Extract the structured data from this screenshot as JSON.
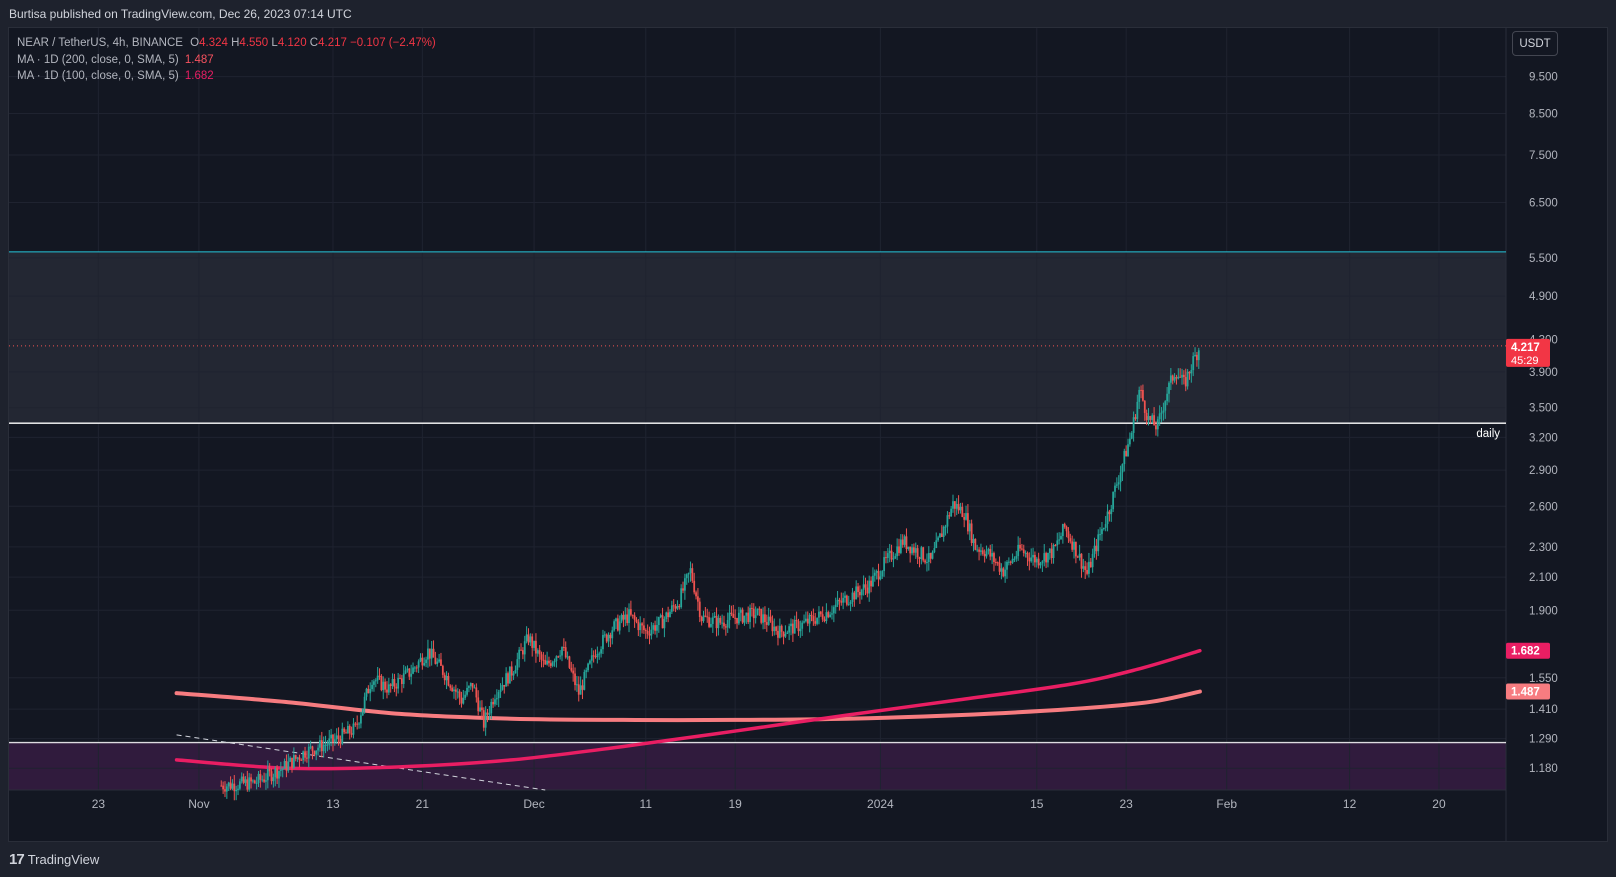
{
  "header": {
    "published": "Burtisa published on TradingView.com, Dec 26, 2023 07:14 UTC"
  },
  "legend": {
    "symbol": "NEAR / TetherUS, 4h, BINANCE",
    "o_label": "O",
    "o_value": "4.324",
    "h_label": "H",
    "h_value": "4.550",
    "l_label": "L",
    "l_value": "4.120",
    "c_label": "C",
    "c_value": "4.217",
    "change": "−0.107 (−2.47%)",
    "ma1_label": "MA · 1D (200, close, 0, SMA, 5)",
    "ma1_value": "1.487",
    "ma2_label": "MA · 1D (100, close, 0, SMA, 5)",
    "ma2_value": "1.682"
  },
  "currency_button": "USDT",
  "footer": {
    "brand": "TradingView",
    "logo": "17"
  },
  "colors": {
    "background": "#131722",
    "grid": "#1f2330",
    "up": "#26a69a",
    "down": "#ef5350",
    "ma200": "#f77c80",
    "ma100": "#e91e63",
    "resistance": "#26c6da",
    "support": "#ffffff",
    "zone": "#2a2e39",
    "purple_zone": "#311b3f"
  },
  "chart_data": {
    "type": "candlestick",
    "title": "NEAR / TetherUS, 4h, BINANCE",
    "y_scale": "log",
    "ylim": [
      1.105,
      11.0
    ],
    "y_ticks": [
      "9.500",
      "8.500",
      "7.500",
      "6.500",
      "5.500",
      "4.900",
      "4.300",
      "3.900",
      "3.500",
      "3.200",
      "2.900",
      "2.600",
      "2.300",
      "2.100",
      "1.900",
      "1.550",
      "1.410",
      "1.290",
      "1.180"
    ],
    "x_ticks": [
      "23",
      "Nov",
      "13",
      "21",
      "Dec",
      "11",
      "19",
      "2024",
      "15",
      "23",
      "Feb",
      "12",
      "20"
    ],
    "x_tick_dates": [
      "2023-10-23",
      "2023-11-01",
      "2023-11-13",
      "2023-11-21",
      "2023-12-01",
      "2023-12-11",
      "2023-12-19",
      "2024-01-01",
      "2024-01-15",
      "2024-01-23",
      "2024-02-01",
      "2024-02-12",
      "2024-02-20"
    ],
    "x_range": [
      "2023-10-15",
      "2024-02-26"
    ],
    "last_price": {
      "value": 4.217,
      "label": "4.217",
      "countdown": "45:29"
    },
    "levels": [
      {
        "name": "resistance",
        "value": 5.6
      },
      {
        "name": "daily",
        "value": 3.34,
        "label": "daily"
      },
      {
        "name": "support",
        "value": 1.275
      }
    ],
    "zones": [
      {
        "name": "supply-zone",
        "from": 3.34,
        "to": 5.6
      },
      {
        "name": "purple-zone",
        "from": 1.105,
        "to": 1.275
      }
    ],
    "anchors": [
      {
        "d": 19.0,
        "p": 1.12
      },
      {
        "d": 22.0,
        "p": 1.13
      },
      {
        "d": 24.5,
        "p": 1.18
      },
      {
        "d": 26.5,
        "p": 1.24
      },
      {
        "d": 29.0,
        "p": 1.28
      },
      {
        "d": 31.0,
        "p": 1.33
      },
      {
        "d": 32.5,
        "p": 1.55
      },
      {
        "d": 34.0,
        "p": 1.5
      },
      {
        "d": 36.0,
        "p": 1.58
      },
      {
        "d": 37.5,
        "p": 1.68
      },
      {
        "d": 39.0,
        "p": 1.57
      },
      {
        "d": 40.5,
        "p": 1.45
      },
      {
        "d": 41.5,
        "p": 1.52
      },
      {
        "d": 42.5,
        "p": 1.35
      },
      {
        "d": 43.5,
        "p": 1.48
      },
      {
        "d": 45.0,
        "p": 1.58
      },
      {
        "d": 46.5,
        "p": 1.75
      },
      {
        "d": 48.0,
        "p": 1.6
      },
      {
        "d": 49.5,
        "p": 1.7
      },
      {
        "d": 51.0,
        "p": 1.48
      },
      {
        "d": 52.5,
        "p": 1.68
      },
      {
        "d": 54.0,
        "p": 1.8
      },
      {
        "d": 55.5,
        "p": 1.87
      },
      {
        "d": 57.0,
        "p": 1.78
      },
      {
        "d": 58.5,
        "p": 1.84
      },
      {
        "d": 60.0,
        "p": 1.96
      },
      {
        "d": 61.0,
        "p": 2.14
      },
      {
        "d": 62.0,
        "p": 1.86
      },
      {
        "d": 63.5,
        "p": 1.83
      },
      {
        "d": 65.0,
        "p": 1.86
      },
      {
        "d": 67.0,
        "p": 1.88
      },
      {
        "d": 69.0,
        "p": 1.78
      },
      {
        "d": 71.0,
        "p": 1.82
      },
      {
        "d": 73.0,
        "p": 1.88
      },
      {
        "d": 75.0,
        "p": 1.97
      },
      {
        "d": 77.0,
        "p": 2.05
      },
      {
        "d": 78.5,
        "p": 2.2
      },
      {
        "d": 80.0,
        "p": 2.34
      },
      {
        "d": 81.5,
        "p": 2.26
      },
      {
        "d": 82.5,
        "p": 2.2
      },
      {
        "d": 83.5,
        "p": 2.4
      },
      {
        "d": 84.5,
        "p": 2.62
      },
      {
        "d": 85.5,
        "p": 2.55
      },
      {
        "d": 86.5,
        "p": 2.3
      },
      {
        "d": 87.5,
        "p": 2.27
      },
      {
        "d": 89.0,
        "p": 2.14
      },
      {
        "d": 90.5,
        "p": 2.28
      },
      {
        "d": 92.0,
        "p": 2.21
      },
      {
        "d": 93.5,
        "p": 2.27
      },
      {
        "d": 94.5,
        "p": 2.44
      },
      {
        "d": 95.5,
        "p": 2.28
      },
      {
        "d": 96.5,
        "p": 2.12
      },
      {
        "d": 97.5,
        "p": 2.35
      },
      {
        "d": 98.5,
        "p": 2.58
      },
      {
        "d": 99.5,
        "p": 2.9
      },
      {
        "d": 100.5,
        "p": 3.25
      },
      {
        "d": 101.2,
        "p": 3.7
      },
      {
        "d": 102.0,
        "p": 3.38
      },
      {
        "d": 102.8,
        "p": 3.3
      },
      {
        "d": 103.6,
        "p": 3.65
      },
      {
        "d": 104.4,
        "p": 3.92
      },
      {
        "d": 105.2,
        "p": 3.75
      },
      {
        "d": 105.9,
        "p": 4.0
      },
      {
        "d": 106.6,
        "p": 4.217
      }
    ],
    "ma200": {
      "name": "MA 1D (200)",
      "last": 1.487,
      "points": [
        [
          15,
          1.48
        ],
        [
          25,
          1.44
        ],
        [
          35,
          1.39
        ],
        [
          45,
          1.37
        ],
        [
          55,
          1.365
        ],
        [
          65,
          1.365
        ],
        [
          75,
          1.37
        ],
        [
          85,
          1.385
        ],
        [
          95,
          1.41
        ],
        [
          102,
          1.44
        ],
        [
          106.6,
          1.487
        ]
      ]
    },
    "ma100": {
      "name": "MA 1D (100)",
      "last": 1.682,
      "points": [
        [
          15,
          1.21
        ],
        [
          25,
          1.18
        ],
        [
          35,
          1.185
        ],
        [
          45,
          1.21
        ],
        [
          55,
          1.26
        ],
        [
          65,
          1.32
        ],
        [
          75,
          1.385
        ],
        [
          85,
          1.45
        ],
        [
          95,
          1.52
        ],
        [
          101,
          1.59
        ],
        [
          106.6,
          1.682
        ]
      ]
    },
    "trendline": {
      "style": "dashed",
      "points": [
        [
          15,
          1.305
        ],
        [
          48,
          1.105
        ]
      ]
    }
  }
}
